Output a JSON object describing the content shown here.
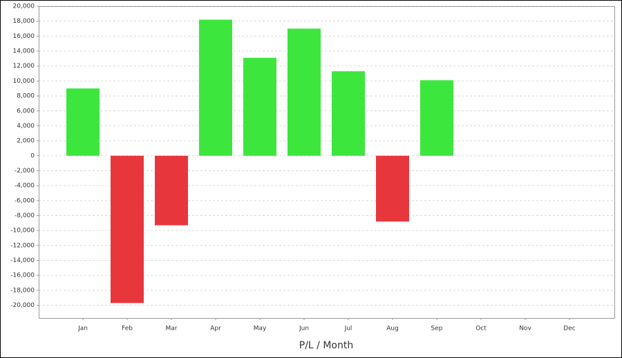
{
  "chart_data": {
    "type": "bar",
    "x_label": "P/L / Month",
    "categories": [
      "Jan",
      "Feb",
      "Mar",
      "Apr",
      "May",
      "Jun",
      "Jul",
      "Aug",
      "Sep",
      "Oct",
      "Nov",
      "Dec"
    ],
    "values": [
      9000,
      -19700,
      -9300,
      18200,
      13100,
      17000,
      11300,
      -8800,
      10100,
      null,
      null,
      null
    ],
    "positive_color": "#3de63d",
    "negative_color": "#e8373c",
    "ylim": [
      -21700,
      20000
    ],
    "yticks": [
      {
        "value": 20000,
        "label": "20,000"
      },
      {
        "value": 18000,
        "label": "18,000"
      },
      {
        "value": 16000,
        "label": "16,000"
      },
      {
        "value": 14000,
        "label": "14,000"
      },
      {
        "value": 12000,
        "label": "12,000"
      },
      {
        "value": 10000,
        "label": "10,000"
      },
      {
        "value": 8000,
        "label": "8,000"
      },
      {
        "value": 6000,
        "label": "6,000"
      },
      {
        "value": 4000,
        "label": "4,000"
      },
      {
        "value": 2000,
        "label": "2,000"
      },
      0,
      {
        "value": -2000,
        "label": "-2,000"
      },
      {
        "value": -4000,
        "label": "-4,000"
      },
      {
        "value": -6000,
        "label": "-6,000"
      },
      {
        "value": -8000,
        "label": "-8,000"
      },
      {
        "value": -10000,
        "label": "-10,000"
      },
      {
        "value": -12000,
        "label": "-12,000"
      },
      {
        "value": -14000,
        "label": "-14,000"
      },
      {
        "value": -16000,
        "label": "-16,000"
      },
      {
        "value": -18000,
        "label": "-18,000"
      },
      {
        "value": -20000,
        "label": "-20,000"
      }
    ],
    "grid": true
  }
}
